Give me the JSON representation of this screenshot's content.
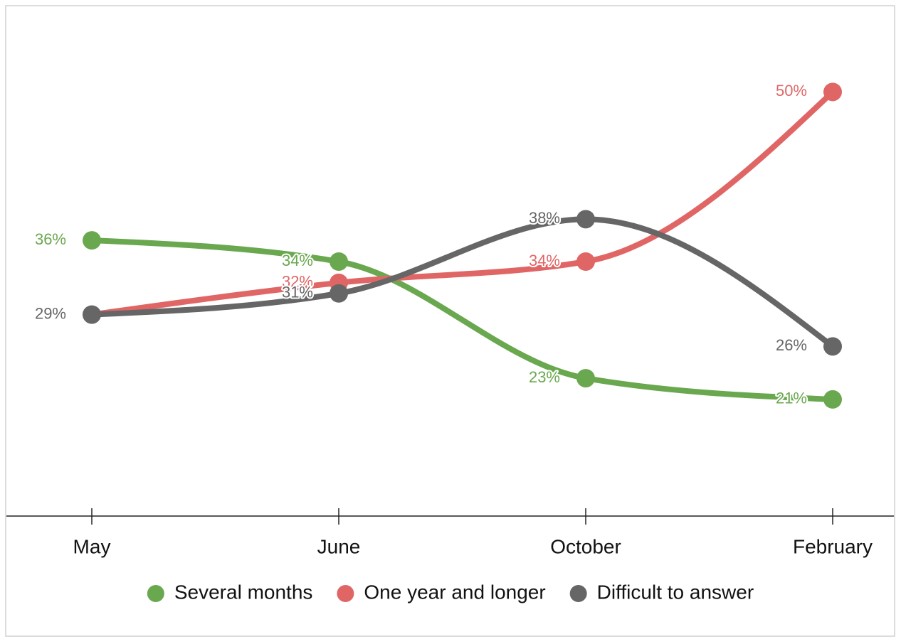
{
  "chart_data": {
    "type": "line",
    "categories": [
      "May",
      "June",
      "October",
      "February"
    ],
    "series": [
      {
        "name": "Several months",
        "color": "#6aa84f",
        "values": [
          36,
          34,
          23,
          21
        ],
        "value_labels": [
          "36%",
          "34%",
          "23%",
          "21%"
        ]
      },
      {
        "name": "One year and longer",
        "color": "#e06666",
        "values": [
          29,
          32,
          34,
          50
        ],
        "value_labels": [
          "29%",
          "32%",
          "34%",
          "50%"
        ]
      },
      {
        "name": "Difficult to answer",
        "color": "#666666",
        "values": [
          29,
          31,
          38,
          26
        ],
        "value_labels": [
          "29%",
          "31%",
          "38%",
          "26%"
        ]
      }
    ],
    "ylim": [
      10,
      58
    ],
    "legend": "bottom"
  }
}
